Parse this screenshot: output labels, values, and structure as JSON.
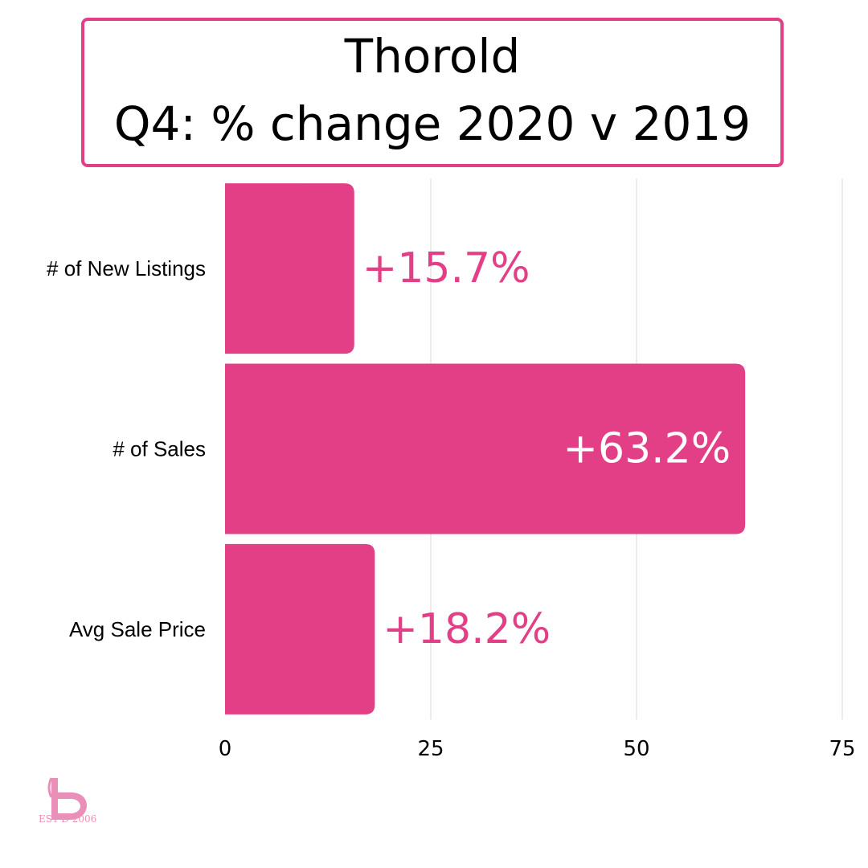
{
  "title": {
    "line1": "Thorold",
    "line2": "Q4: % change 2020 v 2019"
  },
  "colors": {
    "bar": "#e33f86",
    "accent": "#e33f86",
    "logo": "#ea8fb8",
    "grid": "#d9d9d9"
  },
  "chart_data": {
    "type": "bar",
    "orientation": "horizontal",
    "categories": [
      "# of New Listings",
      "# of Sales",
      "Avg Sale Price"
    ],
    "values": [
      15.7,
      63.2,
      18.2
    ],
    "data_labels": [
      "+15.7%",
      "+63.2%",
      "+18.2%"
    ],
    "xlim": [
      0,
      75
    ],
    "x_ticks": [
      0,
      25,
      50,
      75
    ],
    "grid": true,
    "legend": "none"
  },
  "logo": {
    "icon": "logo-icon",
    "est_text": "EST'D 2006"
  }
}
